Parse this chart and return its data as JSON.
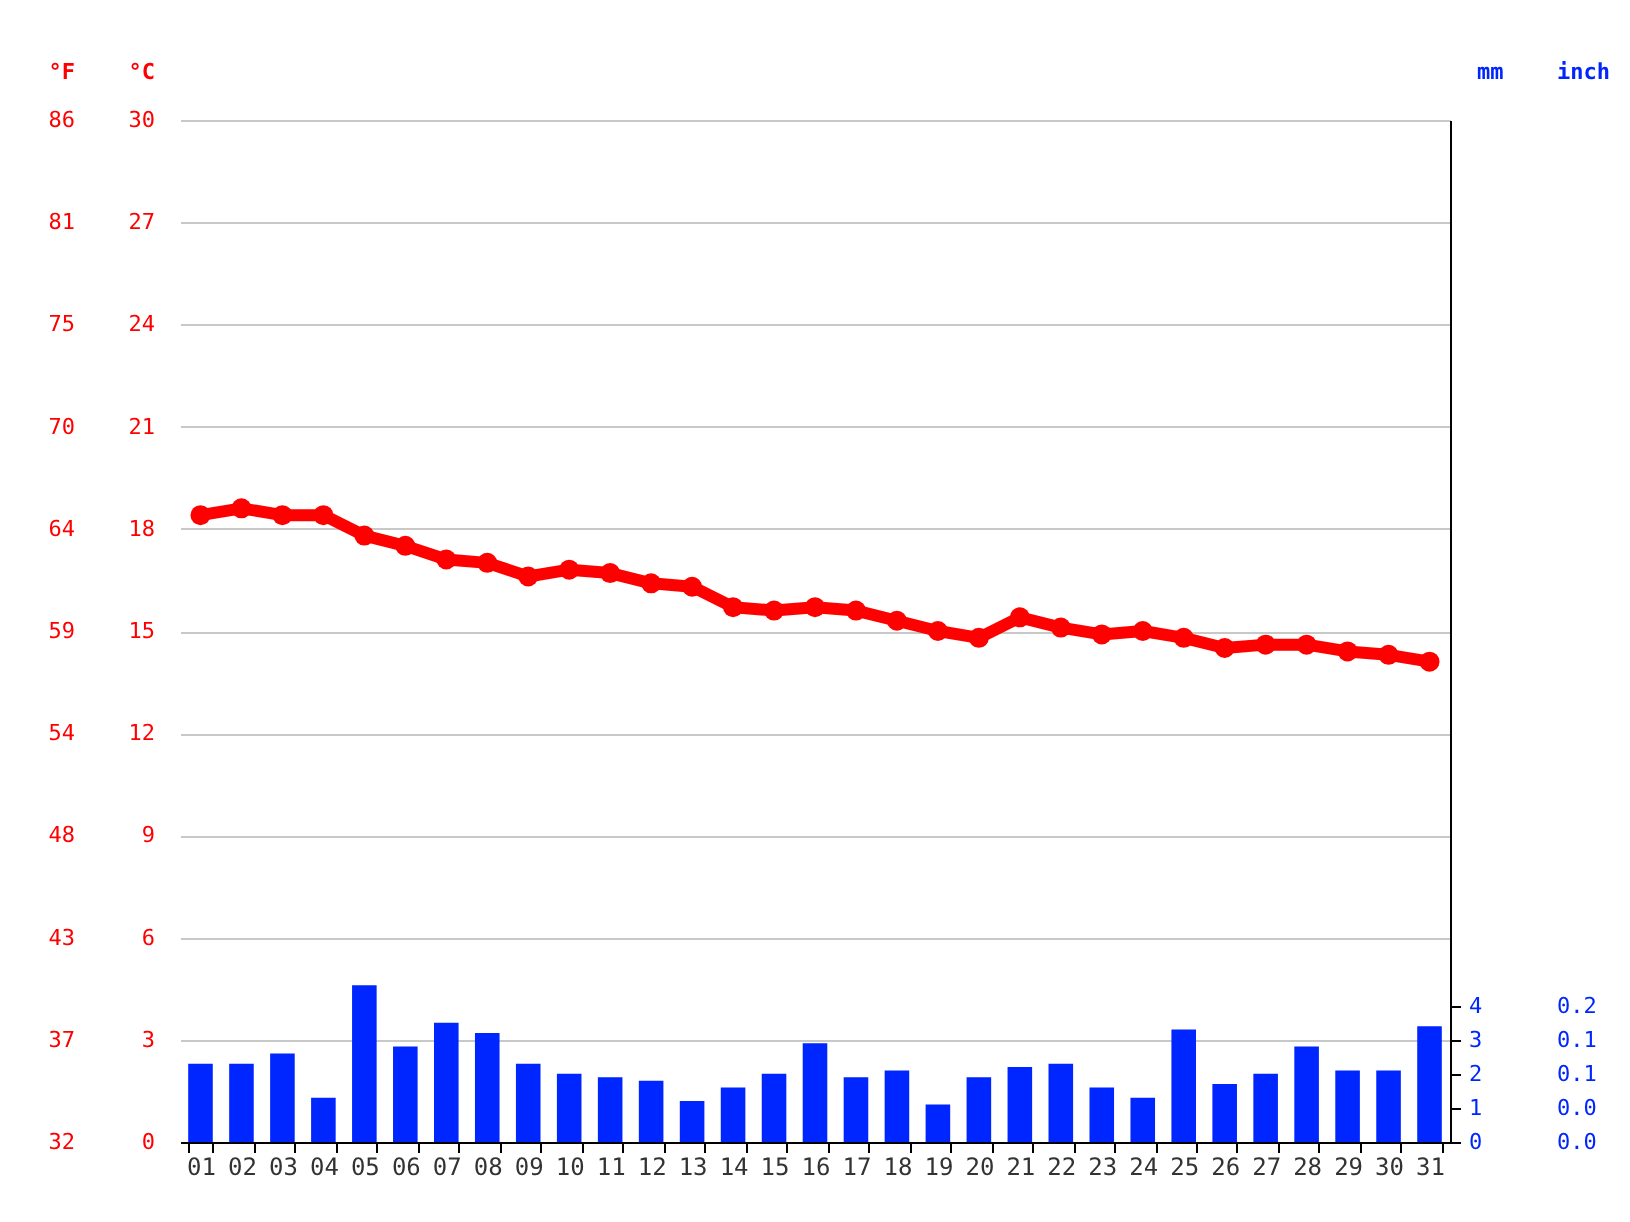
{
  "chart_data": {
    "type": "line",
    "categories": [
      "01",
      "02",
      "03",
      "04",
      "05",
      "06",
      "07",
      "08",
      "09",
      "10",
      "11",
      "12",
      "13",
      "14",
      "15",
      "16",
      "17",
      "18",
      "19",
      "20",
      "21",
      "22",
      "23",
      "24",
      "25",
      "26",
      "27",
      "28",
      "29",
      "30",
      "31"
    ],
    "ylabel": "°C",
    "ylim": [
      0,
      30
    ],
    "yticks": [
      0,
      3,
      6,
      9,
      12,
      15,
      18,
      21,
      24,
      27,
      30
    ],
    "y2label": "°F",
    "y2lim": [
      32,
      86
    ],
    "y2ticks": [
      32,
      {
        "value": 37.4,
        "label": "37"
      },
      {
        "value": 42.8,
        "label": "43"
      },
      {
        "value": 48.2,
        "label": "48"
      },
      {
        "value": 53.6,
        "label": "54"
      },
      59,
      {
        "value": 64.4,
        "label": "64"
      },
      {
        "value": 69.8,
        "label": "70"
      },
      {
        "value": 75.2,
        "label": "75"
      },
      {
        "value": 80.6,
        "label": "81"
      },
      86
    ],
    "y3label": "mm",
    "y3lim": [
      0,
      30
    ],
    "y3ticks": [
      0,
      1,
      2,
      3,
      4
    ],
    "annotations": [
      "inch",
      "0.0",
      "0.0",
      "0.1",
      "0.1",
      "0.2"
    ],
    "grid": "y",
    "series": [
      {
        "type": "bar",
        "axis": "y3",
        "color": "#0026ff",
        "values": [
          2.3,
          2.3,
          2.6,
          1.3,
          4.6,
          2.8,
          3.5,
          3.2,
          2.3,
          2.0,
          1.9,
          1.8,
          1.2,
          1.6,
          2.0,
          2.9,
          1.9,
          2.1,
          1.1,
          1.9,
          2.2,
          2.3,
          1.6,
          1.3,
          3.3,
          1.7,
          2.0,
          2.8,
          2.1,
          2.1,
          3.4
        ]
      },
      {
        "color": "#ff0000",
        "marker": "circle",
        "values": [
          18.4,
          18.6,
          18.4,
          18.4,
          17.8,
          17.5,
          17.1,
          17.0,
          16.6,
          16.8,
          16.7,
          16.4,
          16.3,
          15.7,
          15.6,
          15.7,
          15.6,
          15.3,
          15.0,
          14.8,
          15.4,
          15.1,
          14.9,
          15.0,
          14.8,
          14.5,
          14.6,
          14.6,
          14.4,
          14.3,
          14.1
        ]
      }
    ]
  }
}
